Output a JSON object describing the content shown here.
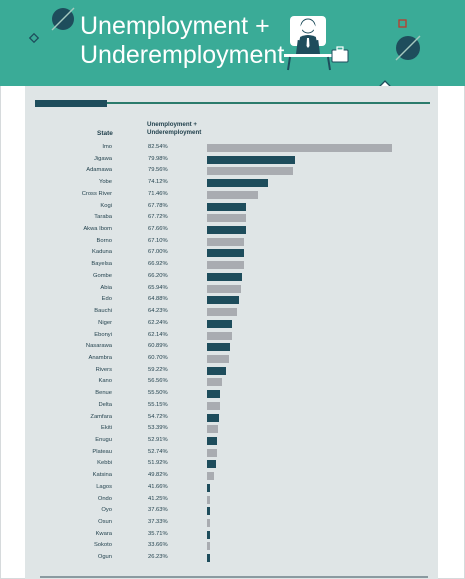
{
  "title": {
    "line1": "Unemployment +",
    "line2": "Underemployment"
  },
  "icons": {
    "header_person": "worried-person-at-desk-icon",
    "circle_left": "slashed-circle-icon",
    "circle_right": "slashed-circle-icon",
    "diamond": "diamond-outline-icon",
    "square": "square-outline-icon"
  },
  "colors": {
    "header_bg": "#3aab97",
    "panel_bg": "#dfe5e6",
    "bar_dark": "#1e4d5c",
    "bar_light": "#a9acb1",
    "text": "#1e3e4a"
  },
  "table": {
    "col_state": "State",
    "col_value_line1": "Unemployment +",
    "col_value_line2": "Underemployment"
  },
  "chart_data": {
    "type": "bar",
    "orientation": "horizontal",
    "categories": [
      "Imo",
      "Jigawa",
      "Adamawa",
      "Yobe",
      "Cross River",
      "Kogi",
      "Taraba",
      "Akwa Ibom",
      "Borno",
      "Kaduna",
      "Bayelsa",
      "Gombe",
      "Abia",
      "Edo",
      "Bauchi",
      "Niger",
      "Ebonyi",
      "Nasarawa",
      "Anambra",
      "Rivers",
      "Kano",
      "Benue",
      "Delta",
      "Zamfara",
      "Ekiti",
      "Enugu",
      "Plateau",
      "Kebbi",
      "Katsina",
      "Lagos",
      "Ondo",
      "Oyo",
      "Osun",
      "Kwara",
      "Sokoto",
      "Ogun"
    ],
    "labels": [
      "82.54%",
      "79.98%",
      "79.56%",
      "74.12%",
      "71.46%",
      "67.78%",
      "67.72%",
      "67.66%",
      "67.10%",
      "67.00%",
      "66.92%",
      "66.20%",
      "65.94%",
      "64.88%",
      "64.23%",
      "62.24%",
      "62.14%",
      "60.89%",
      "60.70%",
      "59.22%",
      "56.56%",
      "55.50%",
      "55.15%",
      "54.72%",
      "53.39%",
      "52.91%",
      "52.74%",
      "51.92%",
      "49.82%",
      "41.66%",
      "41.25%",
      "37.63%",
      "37.33%",
      "35.71%",
      "33.66%",
      "26.23%"
    ],
    "values": [
      82.54,
      79.98,
      79.56,
      74.12,
      71.46,
      67.78,
      67.72,
      67.66,
      67.1,
      67.0,
      66.92,
      66.2,
      65.94,
      64.88,
      64.23,
      62.24,
      62.14,
      60.89,
      60.7,
      59.22,
      56.56,
      55.5,
      55.15,
      54.72,
      53.39,
      52.91,
      52.74,
      51.92,
      49.82,
      41.66,
      41.25,
      37.63,
      37.33,
      35.71,
      33.66,
      26.23
    ],
    "bar_shades": [
      "light",
      "dark",
      "light",
      "dark",
      "light",
      "dark",
      "light",
      "dark",
      "light",
      "dark",
      "light",
      "dark",
      "light",
      "dark",
      "light",
      "dark",
      "light",
      "dark",
      "light",
      "dark",
      "light",
      "dark",
      "light",
      "dark",
      "light",
      "dark",
      "light",
      "dark",
      "light",
      "dark",
      "light",
      "dark",
      "light",
      "dark",
      "light",
      "dark"
    ],
    "title": "",
    "xlabel": "",
    "ylabel": "State",
    "grid": false
  }
}
